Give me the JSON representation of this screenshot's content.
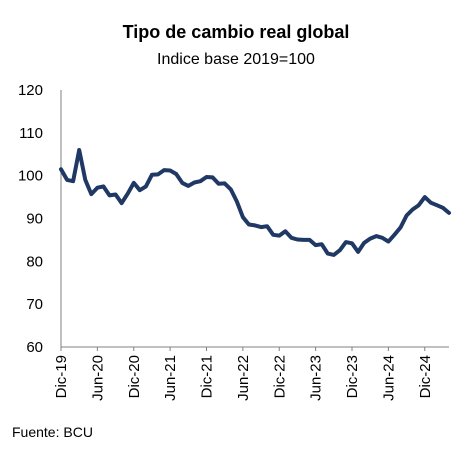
{
  "chart_data": {
    "type": "line",
    "title": "Tipo de cambio real global",
    "subtitle": "Indice base 2019=100",
    "source": "Fuente: BCU",
    "ylim": [
      60,
      120
    ],
    "yticks": [
      60,
      70,
      80,
      90,
      100,
      110,
      120
    ],
    "xticks": [
      "Dic-19",
      "Jun-20",
      "Dic-20",
      "Jun-21",
      "Dic-21",
      "Jun-22",
      "Dic-22",
      "Jun-23",
      "Dic-23",
      "Jun-24",
      "Dic-24"
    ],
    "grid": false,
    "color": "#1f3864",
    "series": [
      {
        "x": [
          "Dic-19",
          "Ene-20",
          "Feb-20",
          "Mar-20",
          "Abr-20",
          "May-20",
          "Jun-20",
          "Jul-20",
          "Ago-20",
          "Sep-20",
          "Oct-20",
          "Nov-20",
          "Dic-20",
          "Ene-21",
          "Feb-21",
          "Mar-21",
          "Abr-21",
          "May-21",
          "Jun-21",
          "Jul-21",
          "Ago-21",
          "Sep-21",
          "Oct-21",
          "Nov-21",
          "Dic-21",
          "Ene-22",
          "Feb-22",
          "Mar-22",
          "Abr-22",
          "May-22",
          "Jun-22",
          "Jul-22",
          "Ago-22",
          "Sep-22",
          "Oct-22",
          "Nov-22",
          "Dic-22",
          "Ene-23",
          "Feb-23",
          "Mar-23",
          "Abr-23",
          "May-23",
          "Jun-23",
          "Jul-23",
          "Ago-23",
          "Sep-23",
          "Oct-23",
          "Nov-23",
          "Dic-23",
          "Ene-24",
          "Feb-24",
          "Mar-24",
          "Abr-24",
          "May-24",
          "Jun-24",
          "Jul-24",
          "Ago-24",
          "Sep-24",
          "Oct-24",
          "Nov-24",
          "Dic-24",
          "Ene-25",
          "Feb-25",
          "Mar-25",
          "Abr-25"
        ],
        "values": [
          101.5,
          99,
          98.7,
          106,
          99,
          95.7,
          97.2,
          97.5,
          95.4,
          95.6,
          93.6,
          95.8,
          98.3,
          96.6,
          97.5,
          100.2,
          100.3,
          101.3,
          101.2,
          100.4,
          98.3,
          97.6,
          98.4,
          98.7,
          99.7,
          99.6,
          98.1,
          98.2,
          96.8,
          94,
          90.3,
          88.6,
          88.4,
          88,
          88.2,
          86.2,
          86,
          87,
          85.5,
          85.1,
          85,
          85,
          83.8,
          84,
          81.8,
          81.5,
          82.6,
          84.5,
          84.2,
          82.2,
          84.3,
          85.3,
          85.9,
          85.5,
          84.6,
          86.2,
          87.9,
          90.7,
          92.1,
          93.1,
          95,
          93.7,
          93.1,
          92.5,
          91.3
        ]
      }
    ]
  }
}
